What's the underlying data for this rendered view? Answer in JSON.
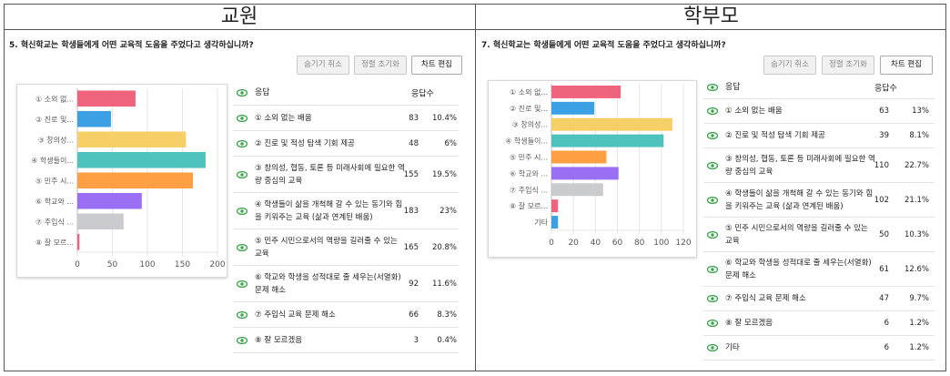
{
  "left": {
    "title": "교원",
    "question": "5. 혁신학교는 학생들에게 어떤 교육적 도움을 주었다고 생각하십니까?",
    "buttons": {
      "hide_cancel": "숨기기 취소",
      "reset_sort": "정렬 초기화",
      "edit_chart": "차트 편집"
    },
    "table_header": {
      "response": "응답",
      "count": "응답수"
    },
    "rows": [
      {
        "line1": "① 소외 없는 배움",
        "line2": "",
        "count": "83",
        "pct": "10.4%"
      },
      {
        "line1": "② 진로 및 적성 탐색 기회 제공",
        "line2": "",
        "count": "48",
        "pct": "6%"
      },
      {
        "line1": "③ 창의성, 협동, 토론 등 미래사회에 필요한 역",
        "line2": "량 중심의 교육",
        "count": "155",
        "pct": "19.5%"
      },
      {
        "line1": "④ 학생들이 삶을 개척해 갈 수 있는 동기와 힘",
        "line2": "을 키워주는 교육 (삶과 연계된 배움)",
        "count": "183",
        "pct": "23%"
      },
      {
        "line1": "⑤ 민주 시민으로서의 역량을 길러줄 수 있는",
        "line2": "교육",
        "count": "165",
        "pct": "20.8%"
      },
      {
        "line1": "⑥ 학교와 학생을 성적대로 줄 세우는(서열화)",
        "line2": "문제 해소",
        "count": "92",
        "pct": "11.6%"
      },
      {
        "line1": "⑦ 주입식 교육 문제 해소",
        "line2": "",
        "count": "66",
        "pct": "8.3%"
      },
      {
        "line1": "⑧ 잘 모르겠음",
        "line2": "",
        "count": "3",
        "pct": "0.4%"
      }
    ]
  },
  "right": {
    "title": "학부모",
    "question": "7. 혁신학교는 학생들에게 어떤 교육적 도움을 주었다고 생각하십니까?",
    "buttons": {
      "hide_cancel": "숨기기 취소",
      "reset_sort": "정렬 초기화",
      "edit_chart": "차트 편집"
    },
    "table_header": {
      "response": "응답",
      "count": "응답수"
    },
    "rows": [
      {
        "line1": "① 소외 없는 배움",
        "line2": "",
        "count": "63",
        "pct": "13%"
      },
      {
        "line1": "② 진로 및 적성 탐색 기회 제공",
        "line2": "",
        "count": "39",
        "pct": "8.1%"
      },
      {
        "line1": "③ 창의성, 협동, 토론 등 미래사회에 필요한 역",
        "line2": "량 중심의 교육",
        "count": "110",
        "pct": "22.7%"
      },
      {
        "line1": "④ 학생들이 삶을 개척해 갈 수 있는 동기와 힘",
        "line2": "을 키워주는 교육 (삶과 연계된 배움)",
        "count": "102",
        "pct": "21.1%"
      },
      {
        "line1": "⑤ 민주 시민으로서의 역량을 길러줄 수 있는",
        "line2": "교육",
        "count": "50",
        "pct": "10.3%"
      },
      {
        "line1": "⑥ 학교와 학생을 성적대로 줄 세우는(서열화)",
        "line2": "문제 해소",
        "count": "61",
        "pct": "12.6%"
      },
      {
        "line1": "⑦ 주입식 교육 문제 해소",
        "line2": "",
        "count": "47",
        "pct": "9.7%"
      },
      {
        "line1": "⑧ 잘 모르겠음",
        "line2": "",
        "count": "6",
        "pct": "1.2%"
      },
      {
        "line1": "기타",
        "line2": "",
        "count": "6",
        "pct": "1.2%"
      }
    ]
  },
  "colors": {
    "eye": "#3aa24a",
    "grid": "#e6e6e6",
    "axis": "#bbbbbb"
  },
  "chart_data": [
    {
      "type": "bar",
      "orientation": "horizontal",
      "title": "",
      "categories": [
        "① 소외 없...",
        "② 진로 및...",
        "③ 창의성...",
        "④ 학생들이...",
        "⑤ 민주 시...",
        "⑥ 학교와 ...",
        "⑦ 주입식 ...",
        "⑧ 잘 모르..."
      ],
      "values": [
        83,
        48,
        155,
        183,
        165,
        92,
        66,
        3
      ],
      "colors": [
        "#f0637c",
        "#3ba0e4",
        "#f7cf67",
        "#4ec2bd",
        "#ff9f44",
        "#9b6ff3",
        "#c9cbcf",
        "#f0637c"
      ],
      "xlim": [
        0,
        200
      ],
      "xticks": [
        "0",
        "50",
        "100",
        "150",
        "200"
      ],
      "grid": true
    },
    {
      "type": "bar",
      "orientation": "horizontal",
      "title": "",
      "categories": [
        "① 소외 없...",
        "② 진로 및...",
        "③ 창의성...",
        "④ 학생들이...",
        "⑤ 민주 시...",
        "⑥ 학교와 ...",
        "⑦ 주입식 ...",
        "⑧ 잘 모르...",
        "기타"
      ],
      "values": [
        63,
        39,
        110,
        102,
        50,
        61,
        47,
        6,
        6
      ],
      "colors": [
        "#f0637c",
        "#3ba0e4",
        "#f7cf67",
        "#4ec2bd",
        "#ff9f44",
        "#9b6ff3",
        "#c9cbcf",
        "#f0637c",
        "#3ba0e4"
      ],
      "xlim": [
        0,
        120
      ],
      "xticks": [
        "0",
        "20",
        "40",
        "60",
        "80",
        "100",
        "120"
      ],
      "grid": true
    }
  ]
}
